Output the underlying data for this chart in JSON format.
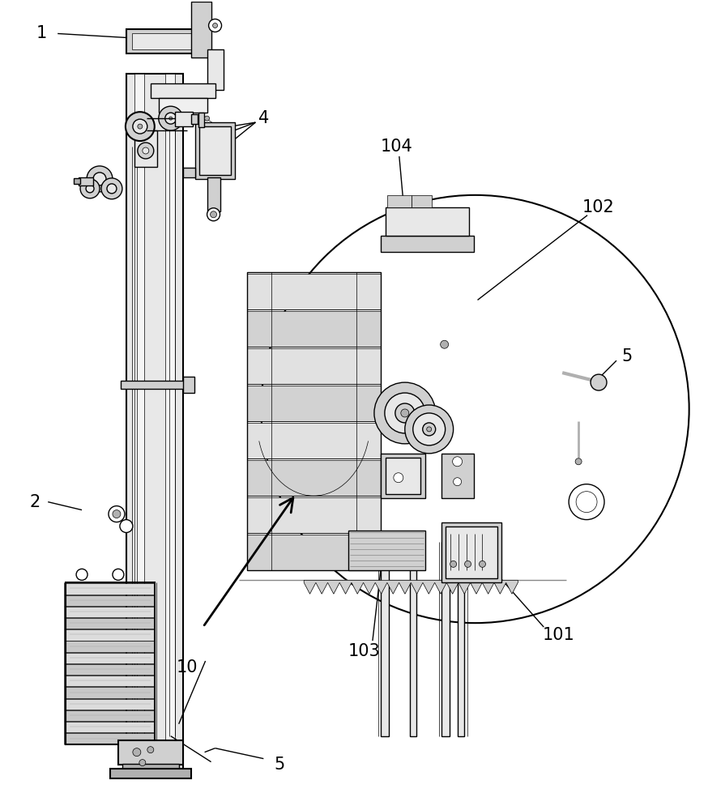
{
  "background_color": "#ffffff",
  "line_color": "#000000",
  "gray_light": "#e8e8e8",
  "gray_mid": "#d0d0d0",
  "gray_dark": "#b0b0b0",
  "lw": 1.0,
  "tlw": 0.5,
  "thklw": 1.5,
  "label_fs": 15,
  "fig_width": 8.74,
  "fig_height": 10.0
}
